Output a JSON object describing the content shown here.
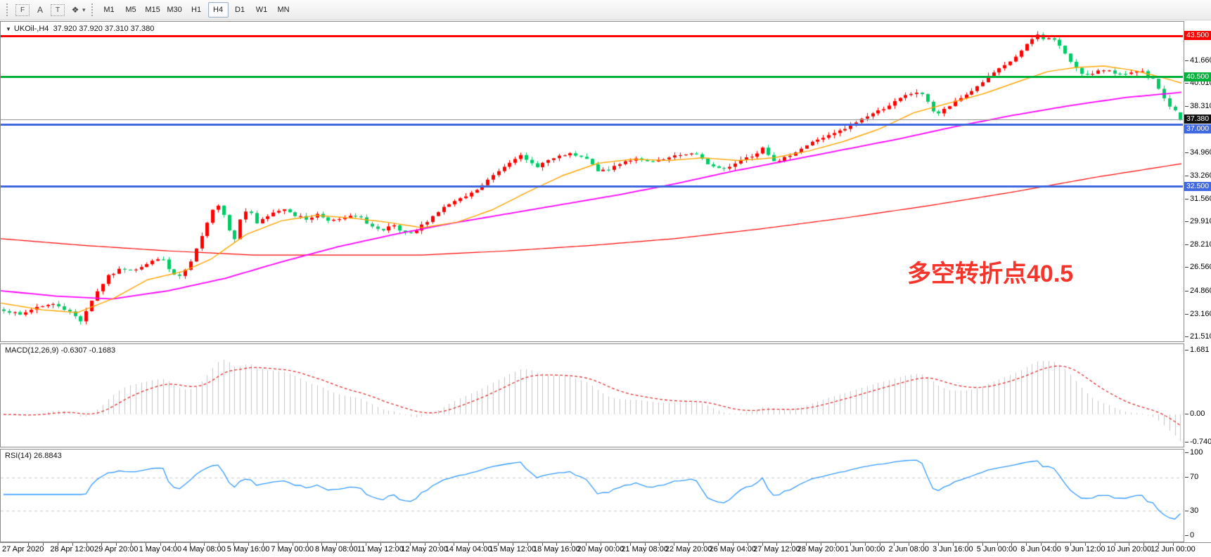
{
  "toolbar": {
    "tools": [
      {
        "name": "selection-frame",
        "glyph": "F",
        "boxed": true
      },
      {
        "name": "label-tool",
        "glyph": "A",
        "boxed": false
      },
      {
        "name": "text-tool",
        "glyph": "T",
        "boxed": true
      },
      {
        "name": "colors-tool",
        "glyph": "❖",
        "boxed": false,
        "caret": "▾"
      }
    ],
    "timeframes": [
      "M1",
      "M5",
      "M15",
      "M30",
      "H1",
      "H4",
      "D1",
      "W1",
      "MN"
    ],
    "active_timeframe": "H4"
  },
  "main_chart": {
    "dropdown_glyph": "▼",
    "symbol_period": "UKOil-,H4",
    "ohlc_text": "37.920 37.920 37.310 37.380"
  },
  "indicators": {
    "macd": {
      "label": "MACD(12,26,9)",
      "values": "-0.6307 -0.1683"
    },
    "rsi": {
      "label": "RSI(14)",
      "values": "26.8843"
    }
  },
  "annotation": {
    "text": "多空转折点40.5",
    "color": "#f5342b"
  },
  "chart_data": {
    "type": "candlestick",
    "title": "UKOil-,H4",
    "timeframe": "H4",
    "current_bar": {
      "open": 37.92,
      "high": 37.92,
      "low": 37.31,
      "close": 37.38
    },
    "colors": {
      "bull": "#ff0000",
      "bear": "#00cc66",
      "ma_fast": "#ffa500",
      "ma_mid": "#ff00ff",
      "ma_slow": "#ff0000",
      "macd_hist": "#c4c4c4",
      "macd_signal": "#e03131",
      "rsi_line": "#3399ff",
      "level_dash": "#c8c8c8"
    },
    "y_axis": {
      "ticks": [
        41.66,
        40.01,
        38.31,
        36.61,
        34.96,
        33.26,
        31.56,
        29.91,
        28.21,
        26.56,
        24.86,
        23.16,
        21.51
      ],
      "tick_labels": [
        "41.660",
        "40.010",
        "38.310",
        "36.610",
        "34.960",
        "33.260",
        "31.560",
        "29.910",
        "28.210",
        "26.560",
        "24.860",
        "23.160",
        "21.510"
      ],
      "range": [
        21.2,
        44.6
      ]
    },
    "badges": [
      {
        "label": "43.500",
        "price": 43.5,
        "bg": "#ff0000"
      },
      {
        "label": "40.500",
        "price": 40.5,
        "bg": "#00b13c"
      },
      {
        "label": "37.380",
        "price": 37.38,
        "bg": "#111111"
      },
      {
        "label": "37.000",
        "price": 37.0,
        "bg": "#4169e1",
        "nudge": 6
      },
      {
        "label": "32.500",
        "price": 32.5,
        "bg": "#4169e1"
      }
    ],
    "hlines": [
      {
        "price": 43.5,
        "color": "#ff0000",
        "width": 3
      },
      {
        "price": 40.5,
        "color": "#00b13c",
        "width": 3
      },
      {
        "price": 37.38,
        "color": "#9a9a9a",
        "width": 1
      },
      {
        "price": 37.0,
        "color": "#4169e1",
        "width": 3
      },
      {
        "price": 32.5,
        "color": "#4169e1",
        "width": 3
      }
    ],
    "x_labels": [
      "27 Apr 2020",
      "28 Apr 12:00",
      "29 Apr 20:00",
      "1 May 04:00",
      "4 May 08:00",
      "5 May 16:00",
      "7 May 00:00",
      "8 May 08:00",
      "11 May 12:00",
      "12 May 20:00",
      "14 May 04:00",
      "15 May 12:00",
      "18 May 16:00",
      "20 May 00:00",
      "21 May 08:00",
      "22 May 20:00",
      "26 May 04:00",
      "27 May 12:00",
      "28 May 20:00",
      "1 Jun 00:00",
      "2 Jun 08:00",
      "3 Jun 16:00",
      "5 Jun 00:00",
      "8 Jun 04:00",
      "9 Jun 12:00",
      "10 Jun 20:00",
      "12 Jun 00:00"
    ],
    "price_path": [
      [
        0,
        23.6
      ],
      [
        28,
        23.1
      ],
      [
        55,
        23.8
      ],
      [
        80,
        23.9
      ],
      [
        100,
        23.3
      ],
      [
        115,
        22.7
      ],
      [
        132,
        24.4
      ],
      [
        152,
        25.9
      ],
      [
        172,
        26.5
      ],
      [
        192,
        26.5
      ],
      [
        212,
        26.9
      ],
      [
        228,
        27.4
      ],
      [
        244,
        26.1
      ],
      [
        258,
        25.9
      ],
      [
        272,
        27.1
      ],
      [
        288,
        29.0
      ],
      [
        300,
        30.8
      ],
      [
        312,
        31.2
      ],
      [
        322,
        29.9
      ],
      [
        332,
        28.5
      ],
      [
        344,
        30.5
      ],
      [
        354,
        30.9
      ],
      [
        364,
        29.8
      ],
      [
        378,
        30.2
      ],
      [
        392,
        30.7
      ],
      [
        406,
        30.9
      ],
      [
        420,
        30.4
      ],
      [
        436,
        30.1
      ],
      [
        450,
        30.5
      ],
      [
        466,
        30.1
      ],
      [
        480,
        30.0
      ],
      [
        494,
        30.3
      ],
      [
        510,
        30.3
      ],
      [
        528,
        29.6
      ],
      [
        544,
        29.2
      ],
      [
        558,
        29.7
      ],
      [
        572,
        29.1
      ],
      [
        586,
        29.0
      ],
      [
        600,
        29.7
      ],
      [
        614,
        30.3
      ],
      [
        628,
        30.9
      ],
      [
        642,
        31.3
      ],
      [
        656,
        31.6
      ],
      [
        670,
        32.0
      ],
      [
        684,
        32.5
      ],
      [
        698,
        33.2
      ],
      [
        712,
        33.8
      ],
      [
        726,
        34.4
      ],
      [
        738,
        34.8
      ],
      [
        750,
        34.3
      ],
      [
        764,
        34.0
      ],
      [
        778,
        34.4
      ],
      [
        792,
        34.6
      ],
      [
        806,
        34.9
      ],
      [
        820,
        34.7
      ],
      [
        834,
        34.5
      ],
      [
        848,
        33.7
      ],
      [
        862,
        33.6
      ],
      [
        876,
        34.1
      ],
      [
        890,
        34.4
      ],
      [
        904,
        34.5
      ],
      [
        918,
        34.3
      ],
      [
        932,
        34.3
      ],
      [
        946,
        34.5
      ],
      [
        960,
        34.7
      ],
      [
        974,
        34.9
      ],
      [
        988,
        34.9
      ],
      [
        1002,
        34.3
      ],
      [
        1016,
        33.9
      ],
      [
        1030,
        33.8
      ],
      [
        1044,
        34.2
      ],
      [
        1058,
        34.6
      ],
      [
        1072,
        34.8
      ],
      [
        1086,
        35.5
      ],
      [
        1096,
        34.5
      ],
      [
        1108,
        34.3
      ],
      [
        1122,
        34.8
      ],
      [
        1136,
        35.2
      ],
      [
        1150,
        35.6
      ],
      [
        1164,
        36.0
      ],
      [
        1178,
        36.2
      ],
      [
        1192,
        36.5
      ],
      [
        1206,
        36.8
      ],
      [
        1220,
        37.3
      ],
      [
        1234,
        37.7
      ],
      [
        1248,
        38.0
      ],
      [
        1262,
        38.4
      ],
      [
        1276,
        38.8
      ],
      [
        1290,
        39.2
      ],
      [
        1304,
        39.4
      ],
      [
        1316,
        39.0
      ],
      [
        1330,
        37.7
      ],
      [
        1342,
        38.1
      ],
      [
        1356,
        38.6
      ],
      [
        1370,
        39.1
      ],
      [
        1384,
        39.6
      ],
      [
        1398,
        40.2
      ],
      [
        1412,
        40.8
      ],
      [
        1426,
        41.2
      ],
      [
        1440,
        41.8
      ],
      [
        1454,
        42.5
      ],
      [
        1466,
        43.2
      ],
      [
        1476,
        43.6
      ],
      [
        1486,
        43.2
      ],
      [
        1496,
        43.4
      ],
      [
        1506,
        42.8
      ],
      [
        1516,
        42.0
      ],
      [
        1526,
        41.4
      ],
      [
        1538,
        40.8
      ],
      [
        1550,
        40.6
      ],
      [
        1562,
        40.9
      ],
      [
        1574,
        41.1
      ],
      [
        1586,
        40.8
      ],
      [
        1598,
        40.6
      ],
      [
        1610,
        40.8
      ],
      [
        1622,
        40.9
      ],
      [
        1632,
        40.5
      ],
      [
        1642,
        40.2
      ],
      [
        1652,
        39.2
      ],
      [
        1660,
        38.5
      ],
      [
        1668,
        38.1
      ],
      [
        1675,
        37.9
      ],
      [
        1684,
        37.4
      ]
    ],
    "ma_fast": [
      [
        0,
        24.0
      ],
      [
        60,
        23.5
      ],
      [
        110,
        23.3
      ],
      [
        160,
        24.3
      ],
      [
        210,
        25.7
      ],
      [
        260,
        26.3
      ],
      [
        300,
        27.2
      ],
      [
        350,
        29.0
      ],
      [
        400,
        30.0
      ],
      [
        450,
        30.4
      ],
      [
        500,
        30.2
      ],
      [
        550,
        29.9
      ],
      [
        600,
        29.5
      ],
      [
        650,
        29.9
      ],
      [
        700,
        30.8
      ],
      [
        750,
        32.1
      ],
      [
        800,
        33.3
      ],
      [
        850,
        34.2
      ],
      [
        900,
        34.5
      ],
      [
        950,
        34.4
      ],
      [
        1000,
        34.6
      ],
      [
        1050,
        34.4
      ],
      [
        1100,
        34.6
      ],
      [
        1150,
        35.1
      ],
      [
        1200,
        35.8
      ],
      [
        1250,
        36.7
      ],
      [
        1300,
        37.9
      ],
      [
        1350,
        38.6
      ],
      [
        1400,
        39.3
      ],
      [
        1450,
        40.2
      ],
      [
        1490,
        40.9
      ],
      [
        1530,
        41.2
      ],
      [
        1570,
        41.3
      ],
      [
        1610,
        41.0
      ],
      [
        1650,
        40.5
      ],
      [
        1684,
        40.0
      ]
    ],
    "ma_mid": [
      [
        0,
        24.9
      ],
      [
        80,
        24.5
      ],
      [
        160,
        24.3
      ],
      [
        240,
        24.9
      ],
      [
        320,
        25.8
      ],
      [
        400,
        27.0
      ],
      [
        480,
        28.1
      ],
      [
        560,
        29.0
      ],
      [
        640,
        29.8
      ],
      [
        720,
        30.5
      ],
      [
        800,
        31.2
      ],
      [
        880,
        31.9
      ],
      [
        960,
        32.7
      ],
      [
        1040,
        33.6
      ],
      [
        1120,
        34.4
      ],
      [
        1200,
        35.2
      ],
      [
        1280,
        36.0
      ],
      [
        1360,
        36.9
      ],
      [
        1440,
        37.7
      ],
      [
        1520,
        38.4
      ],
      [
        1600,
        39.0
      ],
      [
        1684,
        39.4
      ]
    ],
    "ma_slow": [
      [
        0,
        28.7
      ],
      [
        120,
        28.2
      ],
      [
        240,
        27.8
      ],
      [
        360,
        27.5
      ],
      [
        480,
        27.5
      ],
      [
        600,
        27.5
      ],
      [
        720,
        27.8
      ],
      [
        840,
        28.2
      ],
      [
        960,
        28.7
      ],
      [
        1080,
        29.4
      ],
      [
        1200,
        30.2
      ],
      [
        1320,
        31.1
      ],
      [
        1440,
        32.1
      ],
      [
        1560,
        33.2
      ],
      [
        1684,
        34.2
      ]
    ],
    "macd": {
      "params": [
        12,
        26,
        9
      ],
      "current_macd": -0.6307,
      "current_signal": -0.1683,
      "axis_labels": [
        {
          "label": "1.681",
          "value": 1.681
        },
        {
          "label": "0.00",
          "value": 0
        },
        {
          "label": "-0.7408",
          "value": -0.7408
        }
      ]
    },
    "rsi": {
      "period": 14,
      "current": 26.8843,
      "axis_labels": [
        {
          "label": "100",
          "value": 100
        },
        {
          "label": "70",
          "value": 70
        },
        {
          "label": "30",
          "value": 30
        },
        {
          "label": "0",
          "value": 0
        }
      ],
      "levels": [
        70,
        30
      ]
    }
  }
}
